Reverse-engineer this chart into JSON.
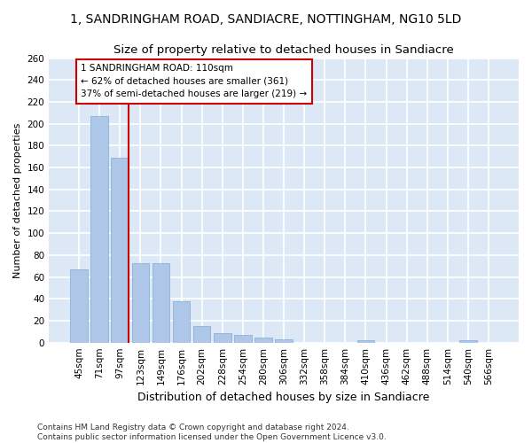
{
  "title": "1, SANDRINGHAM ROAD, SANDIACRE, NOTTINGHAM, NG10 5LD",
  "subtitle": "Size of property relative to detached houses in Sandiacre",
  "xlabel": "Distribution of detached houses by size in Sandiacre",
  "ylabel": "Number of detached properties",
  "categories": [
    "45sqm",
    "71sqm",
    "97sqm",
    "123sqm",
    "149sqm",
    "176sqm",
    "202sqm",
    "228sqm",
    "254sqm",
    "280sqm",
    "306sqm",
    "332sqm",
    "358sqm",
    "384sqm",
    "410sqm",
    "436sqm",
    "462sqm",
    "488sqm",
    "514sqm",
    "540sqm",
    "566sqm"
  ],
  "values": [
    67,
    207,
    169,
    73,
    73,
    38,
    15,
    9,
    7,
    5,
    3,
    0,
    0,
    0,
    2,
    0,
    0,
    0,
    0,
    2,
    0
  ],
  "bar_color": "#aec6e8",
  "bar_edge_color": "#7aadd4",
  "vline_x_index": 2,
  "vline_color": "#cc0000",
  "annotation_line1": "1 SANDRINGHAM ROAD: 110sqm",
  "annotation_line2": "← 62% of detached houses are smaller (361)",
  "annotation_line3": "37% of semi-detached houses are larger (219) →",
  "ylim": [
    0,
    260
  ],
  "yticks": [
    0,
    20,
    40,
    60,
    80,
    100,
    120,
    140,
    160,
    180,
    200,
    220,
    240,
    260
  ],
  "footnote": "Contains HM Land Registry data © Crown copyright and database right 2024.\nContains public sector information licensed under the Open Government Licence v3.0.",
  "bg_color": "#dce8f5",
  "fig_bg_color": "#ffffff",
  "grid_color": "#ffffff",
  "title_fontsize": 10,
  "subtitle_fontsize": 9.5,
  "xlabel_fontsize": 9,
  "ylabel_fontsize": 8,
  "tick_fontsize": 7.5,
  "annot_fontsize": 7.5,
  "footnote_fontsize": 6.5
}
